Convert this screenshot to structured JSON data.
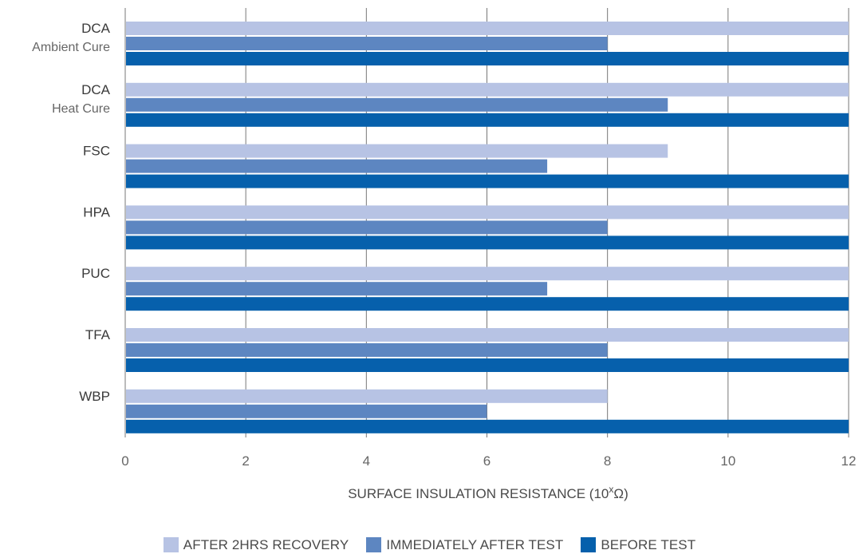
{
  "chart_data": {
    "type": "bar",
    "orientation": "horizontal",
    "categories": [
      {
        "name": "DCA",
        "sub": "Ambient Cure"
      },
      {
        "name": "DCA",
        "sub": "Heat Cure"
      },
      {
        "name": "FSC",
        "sub": ""
      },
      {
        "name": "HPA",
        "sub": ""
      },
      {
        "name": "PUC",
        "sub": ""
      },
      {
        "name": "TFA",
        "sub": ""
      },
      {
        "name": "WBP",
        "sub": ""
      }
    ],
    "series": [
      {
        "name": "AFTER 2HRS RECOVERY",
        "color": "#b7c3e4",
        "values": [
          12,
          12,
          9,
          12,
          12,
          12,
          8
        ]
      },
      {
        "name": "IMMEDIATELY AFTER TEST",
        "color": "#5d86c1",
        "values": [
          8,
          9,
          7,
          8,
          7,
          8,
          6
        ]
      },
      {
        "name": "BEFORE TEST",
        "color": "#0660ac",
        "values": [
          12,
          12,
          12,
          12,
          12,
          12,
          12
        ]
      }
    ],
    "xlabel_main": "SURFACE INSULATION RESISTANCE (10",
    "xlabel_sup": "x",
    "xlabel_end": "Ω)",
    "xlim": [
      0,
      12
    ],
    "xticks": [
      0,
      2,
      4,
      6,
      8,
      10,
      12
    ],
    "grid": true,
    "legend_position": "bottom"
  }
}
